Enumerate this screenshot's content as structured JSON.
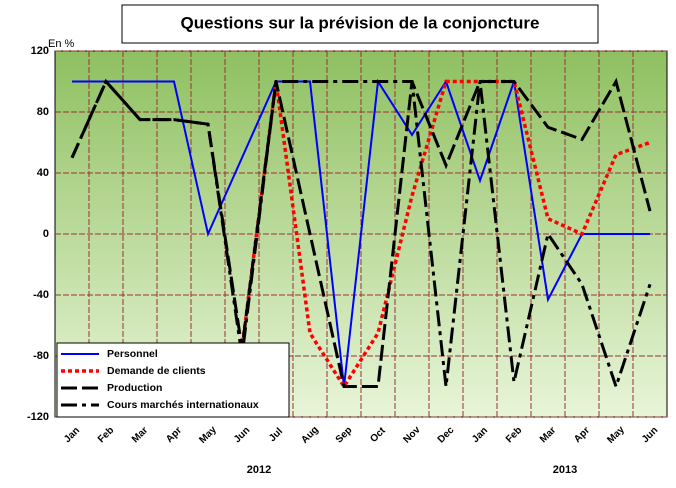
{
  "chart_data": {
    "type": "line",
    "title": "Questions sur la prévision de la conjoncture",
    "y_axis_label": "En %",
    "categories": [
      "Jan",
      "Feb",
      "Mar",
      "Apr",
      "May",
      "Jun",
      "Jul",
      "Aug",
      "Sep",
      "Oct",
      "Nov",
      "Dec",
      "Jan",
      "Feb",
      "Mar",
      "Apr",
      "May",
      "Jun"
    ],
    "year_labels": [
      "2012",
      "2013"
    ],
    "series": [
      {
        "name": "Personnel",
        "color": "#0000ff",
        "dash": "solid",
        "values": [
          100,
          100,
          100,
          100,
          0,
          50,
          100,
          100,
          -100,
          100,
          65,
          100,
          35,
          100,
          -43,
          0,
          0,
          0
        ]
      },
      {
        "name": "Demande de clients",
        "color": "#ff0000",
        "dash": "dotted",
        "values": [
          null,
          null,
          null,
          null,
          null,
          -75,
          100,
          -65,
          -100,
          -65,
          25,
          100,
          100,
          100,
          10,
          0,
          52,
          60
        ]
      },
      {
        "name": "Production",
        "color": "#000000",
        "dash": "dashed",
        "values": [
          50,
          100,
          75,
          75,
          72,
          -75,
          100,
          0,
          -100,
          -100,
          100,
          45,
          100,
          100,
          70,
          62,
          100,
          15
        ]
      },
      {
        "name": "Cours marchés internationaux",
        "color": "#000000",
        "dash": "dashdot",
        "values": [
          50,
          100,
          75,
          75,
          72,
          -80,
          100,
          100,
          100,
          100,
          100,
          -100,
          100,
          -97,
          0,
          -33,
          -100,
          -33
        ]
      }
    ],
    "ylim": [
      -120,
      120
    ],
    "yticks": [
      -120,
      -80,
      -40,
      0,
      40,
      80,
      120
    ],
    "grid": true,
    "grid_color": "#993333",
    "legend": "bottom-left"
  }
}
